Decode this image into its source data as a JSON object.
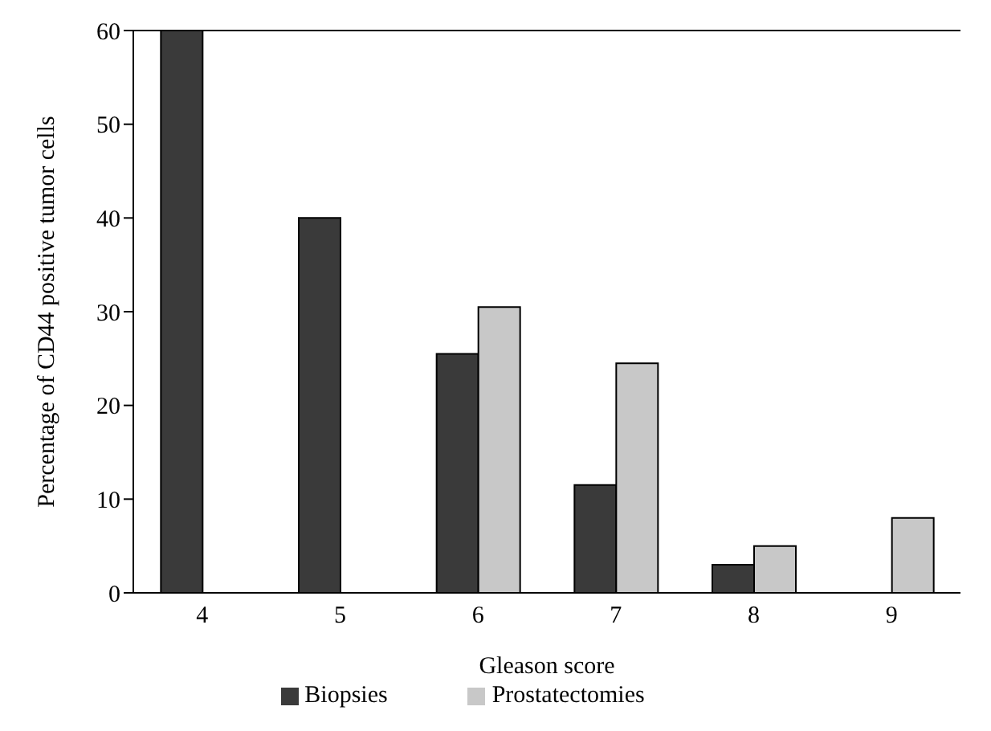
{
  "chart_data": {
    "type": "bar",
    "xlabel": "Gleason score",
    "ylabel": "Percentage of CD44 positive tumor cells",
    "categories": [
      "4",
      "5",
      "6",
      "7",
      "8",
      "9"
    ],
    "series": [
      {
        "name": "Biopsies",
        "color": "#3a3a3a",
        "values": [
          60,
          40,
          25.5,
          11.5,
          3,
          null
        ]
      },
      {
        "name": "Prostatectomies",
        "color": "#c8c8c8",
        "values": [
          null,
          null,
          30.5,
          24.5,
          5,
          8
        ]
      }
    ],
    "ylim": [
      0,
      60
    ],
    "yticks": [
      0,
      10,
      20,
      30,
      40,
      50,
      60
    ],
    "grid": false,
    "legend": "bottom"
  }
}
